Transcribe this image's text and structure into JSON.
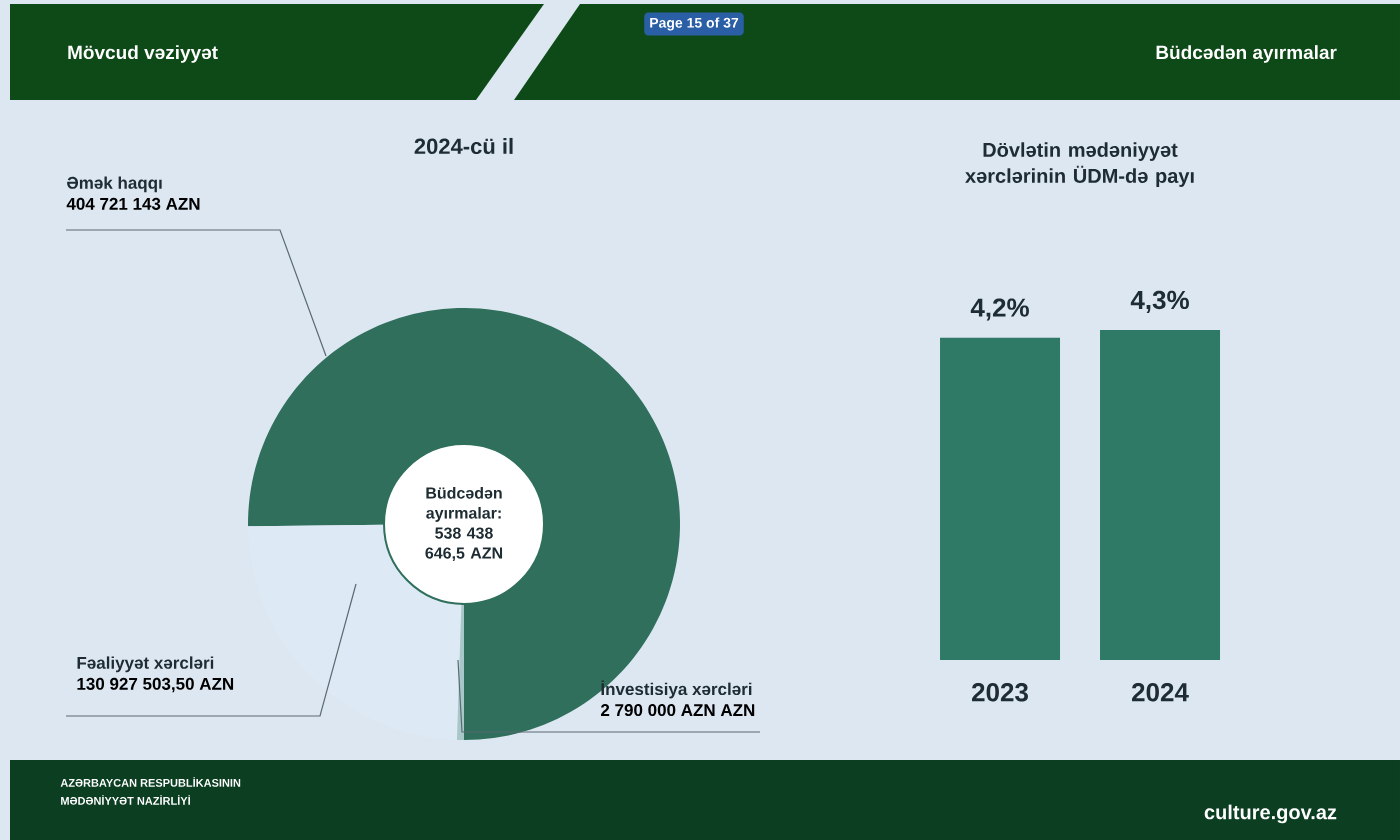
{
  "chart_data": [
    {
      "type": "donut",
      "title": "2024-cü il",
      "categories": [
        "Əmək haqqı",
        "Fəaliyyət xərcləri",
        "İnvestisiya xərcləri"
      ],
      "values": [
        404721143,
        130927503.5,
        2790000
      ],
      "value_labels": [
        "404 721 143 AZN",
        "130 927 503,50 AZN",
        "2 790 000 AZN AZN"
      ],
      "colors": [
        "#2f6f5c",
        "#dde9f4",
        "#a8c7c9"
      ],
      "annotations": [
        "Büdcədən ayırmalar: 538 438 646,5 AZN",
        "Mövcud vəziyyət",
        "Büdcədən ayırmalar",
        "Page 15 of 37",
        "AZƏRBAYCAN RESPUBLİKASININ",
        "MƏDƏNİYYƏT NAZİRLİYİ",
        "culture.gov.az"
      ]
    },
    {
      "type": "bar",
      "title": "Dövlətin mədəniyyət xərclərinin ÜDM-də payı",
      "categories": [
        "2023",
        "2024"
      ],
      "values": [
        4.2,
        4.3
      ],
      "value_labels": [
        "4,2%",
        "4,3%"
      ],
      "color": "#2f7a66"
    }
  ]
}
